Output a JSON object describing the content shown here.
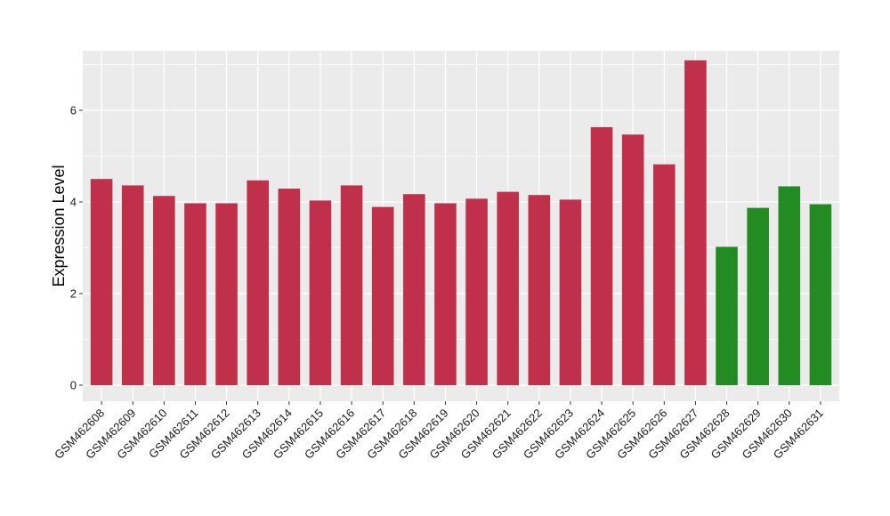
{
  "chart_data": {
    "type": "bar",
    "title": "",
    "xlabel": "",
    "ylabel": "Expression Level",
    "ylim": [
      -0.35,
      7.3
    ],
    "yticks": [
      0,
      2,
      4,
      6
    ],
    "grid": true,
    "legend": "none",
    "categories": [
      "GSM462608",
      "GSM462609",
      "GSM462610",
      "GSM462611",
      "GSM462612",
      "GSM462613",
      "GSM462614",
      "GSM462615",
      "GSM462616",
      "GSM462617",
      "GSM462618",
      "GSM462619",
      "GSM462620",
      "GSM462621",
      "GSM462622",
      "GSM462623",
      "GSM462624",
      "GSM462625",
      "GSM462626",
      "GSM462627",
      "GSM462628",
      "GSM462629",
      "GSM462630",
      "GSM462631"
    ],
    "values": [
      4.5,
      4.36,
      4.13,
      3.97,
      3.97,
      4.47,
      4.29,
      4.03,
      4.36,
      3.89,
      4.17,
      3.97,
      4.07,
      4.22,
      4.15,
      4.05,
      5.63,
      5.47,
      4.82,
      7.09,
      3.02,
      3.87,
      4.34,
      3.95
    ],
    "groups": [
      "red",
      "red",
      "red",
      "red",
      "red",
      "red",
      "red",
      "red",
      "red",
      "red",
      "red",
      "red",
      "red",
      "red",
      "red",
      "red",
      "red",
      "red",
      "red",
      "red",
      "green",
      "green",
      "green",
      "green"
    ],
    "colors": {
      "red": "#c0304a",
      "green": "#228b22",
      "panel": "#ebebeb",
      "grid": "#ffffff"
    }
  }
}
